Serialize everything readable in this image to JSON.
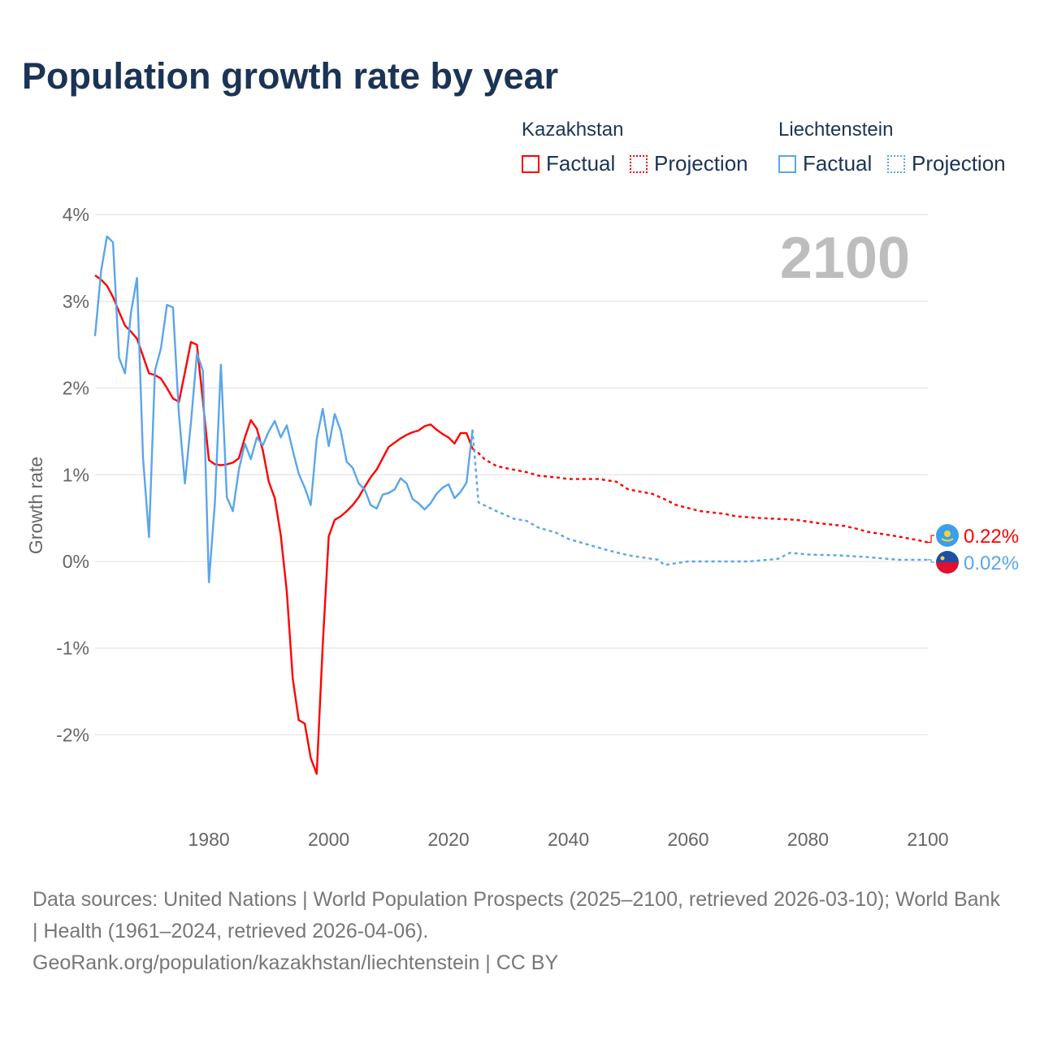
{
  "title": "Population growth rate by year",
  "legend": {
    "groups": [
      {
        "name": "Kazakhstan",
        "factual": "Factual",
        "projection": "Projection",
        "color": "#ff0000"
      },
      {
        "name": "Liechtenstein",
        "factual": "Factual",
        "projection": "Projection",
        "color": "#5aa5ec"
      }
    ]
  },
  "year_label": "2100",
  "footer": {
    "sources": "Data sources: United Nations | World Population Prospects (2025–2100, retrieved 2026-03-10); World Bank | Health (1961–2024, retrieved 2026-04-06).",
    "credit": "GeoRank.org/population/kazakhstan/liechtenstein | CC BY"
  },
  "chart_data": {
    "type": "line",
    "title": "Population growth rate by year",
    "xlabel": "",
    "ylabel": "Growth rate",
    "xlim": [
      1961,
      2100
    ],
    "ylim": [
      -3,
      4
    ],
    "x_ticks": [
      "1980",
      "2000",
      "2020",
      "2040",
      "2060",
      "2080",
      "2100"
    ],
    "y_ticks": [
      "4%",
      "3%",
      "2%",
      "1%",
      "0%",
      "-1%",
      "-2%"
    ],
    "grid": true,
    "series": [
      {
        "name": "Kazakhstan",
        "color": "#ff0000",
        "end_label": "0.22%",
        "factual": {
          "x": [
            1961,
            1962,
            1963,
            1964,
            1965,
            1966,
            1967,
            1968,
            1969,
            1970,
            1971,
            1972,
            1973,
            1974,
            1975,
            1976,
            1977,
            1978,
            1979,
            1980,
            1981,
            1982,
            1983,
            1984,
            1985,
            1986,
            1987,
            1988,
            1989,
            1990,
            1991,
            1992,
            1993,
            1994,
            1995,
            1996,
            1997,
            1998,
            1999,
            2000,
            2001,
            2002,
            2003,
            2004,
            2005,
            2006,
            2007,
            2008,
            2009,
            2010,
            2011,
            2012,
            2013,
            2014,
            2015,
            2016,
            2017,
            2018,
            2019,
            2020,
            2021,
            2022,
            2023,
            2024
          ],
          "y": [
            3.3,
            3.25,
            3.18,
            3.05,
            2.88,
            2.72,
            2.65,
            2.57,
            2.37,
            2.17,
            2.15,
            2.11,
            2.0,
            1.88,
            1.84,
            2.18,
            2.53,
            2.5,
            1.85,
            1.17,
            1.12,
            1.11,
            1.12,
            1.14,
            1.19,
            1.43,
            1.63,
            1.53,
            1.28,
            0.92,
            0.73,
            0.3,
            -0.35,
            -1.35,
            -1.83,
            -1.87,
            -2.27,
            -2.45,
            -0.97,
            0.29,
            0.48,
            0.52,
            0.58,
            0.65,
            0.74,
            0.86,
            0.97,
            1.06,
            1.19,
            1.32,
            1.37,
            1.42,
            1.46,
            1.49,
            1.51,
            1.56,
            1.58,
            1.52,
            1.47,
            1.43,
            1.36,
            1.48,
            1.48,
            1.3
          ]
        },
        "projection": {
          "x": [
            2024,
            2025,
            2026,
            2028,
            2030,
            2033,
            2035,
            2038,
            2040,
            2045,
            2048,
            2050,
            2054,
            2056,
            2058,
            2062,
            2066,
            2068,
            2072,
            2078,
            2082,
            2086,
            2088,
            2090,
            2094,
            2098,
            2100
          ],
          "y": [
            1.3,
            1.25,
            1.18,
            1.1,
            1.07,
            1.03,
            0.99,
            0.97,
            0.95,
            0.95,
            0.92,
            0.83,
            0.78,
            0.72,
            0.65,
            0.58,
            0.55,
            0.52,
            0.5,
            0.48,
            0.44,
            0.41,
            0.38,
            0.34,
            0.3,
            0.25,
            0.22
          ]
        }
      },
      {
        "name": "Liechtenstein",
        "color": "#5aa5ec",
        "end_label": "0.02%",
        "factual": {
          "x": [
            1961,
            1962,
            1963,
            1964,
            1965,
            1966,
            1967,
            1968,
            1969,
            1970,
            1971,
            1972,
            1973,
            1974,
            1975,
            1976,
            1977,
            1978,
            1979,
            1980,
            1981,
            1982,
            1983,
            1984,
            1985,
            1986,
            1987,
            1988,
            1989,
            1990,
            1991,
            1992,
            1993,
            1994,
            1995,
            1996,
            1997,
            1998,
            1999,
            2000,
            2001,
            2002,
            2003,
            2004,
            2005,
            2006,
            2007,
            2008,
            2009,
            2010,
            2011,
            2012,
            2013,
            2014,
            2015,
            2016,
            2017,
            2018,
            2019,
            2020,
            2021,
            2022,
            2023,
            2024
          ],
          "y": [
            2.6,
            3.35,
            3.75,
            3.68,
            2.35,
            2.17,
            2.87,
            3.27,
            1.2,
            0.28,
            2.2,
            2.46,
            2.96,
            2.93,
            1.7,
            0.9,
            1.6,
            2.4,
            2.2,
            -0.24,
            0.68,
            2.27,
            0.74,
            0.58,
            1.06,
            1.36,
            1.18,
            1.43,
            1.34,
            1.5,
            1.62,
            1.43,
            1.57,
            1.28,
            1.01,
            0.85,
            0.65,
            1.41,
            1.76,
            1.33,
            1.7,
            1.51,
            1.15,
            1.08,
            0.9,
            0.83,
            0.65,
            0.61,
            0.77,
            0.79,
            0.83,
            0.96,
            0.9,
            0.72,
            0.67,
            0.6,
            0.67,
            0.78,
            0.85,
            0.89,
            0.73,
            0.8,
            0.91,
            1.52
          ]
        },
        "projection": {
          "x": [
            2024,
            2025,
            2028,
            2031,
            2033,
            2035,
            2038,
            2040,
            2043,
            2046,
            2050,
            2055,
            2056,
            2060,
            2065,
            2070,
            2075,
            2077,
            2080,
            2085,
            2090,
            2095,
            2100
          ],
          "y": [
            1.52,
            0.68,
            0.58,
            0.49,
            0.47,
            0.39,
            0.33,
            0.26,
            0.2,
            0.14,
            0.07,
            0.02,
            -0.04,
            0.0,
            0.0,
            0.0,
            0.03,
            0.1,
            0.08,
            0.07,
            0.05,
            0.02,
            0.02
          ]
        }
      }
    ]
  }
}
